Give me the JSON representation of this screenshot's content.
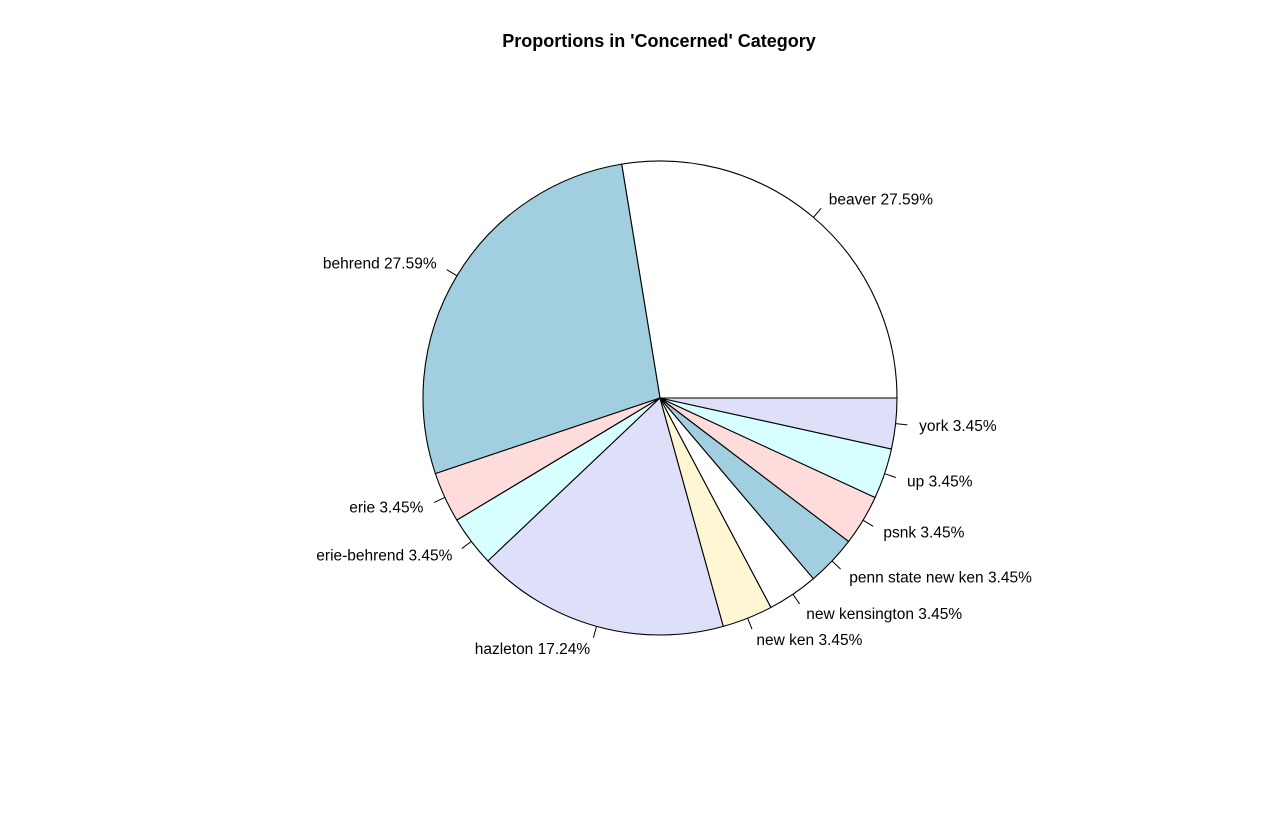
{
  "chart_data": {
    "type": "pie",
    "title": "Proportions in 'Concerned' Category",
    "start_angle_deg": 0,
    "direction": "counterclockwise",
    "slices": [
      {
        "label": "beaver",
        "percent": 27.59,
        "display": "beaver 27.59%",
        "color": "#ffffff"
      },
      {
        "label": "behrend",
        "percent": 27.59,
        "display": "behrend 27.59%",
        "color": "#a1cfe0"
      },
      {
        "label": "erie",
        "percent": 3.45,
        "display": "erie 3.45%",
        "color": "#ffdcdc"
      },
      {
        "label": "erie-behrend",
        "percent": 3.45,
        "display": "erie-behrend 3.45%",
        "color": "#d8ffff"
      },
      {
        "label": "hazleton",
        "percent": 17.24,
        "display": "hazleton 17.24%",
        "color": "#dedff9"
      },
      {
        "label": "new ken",
        "percent": 3.45,
        "display": "new ken 3.45%",
        "color": "#fff7d3"
      },
      {
        "label": "new kensington",
        "percent": 3.45,
        "display": "new kensington 3.45%",
        "color": "#ffffff"
      },
      {
        "label": "penn state new ken",
        "percent": 3.45,
        "display": "penn state new ken 3.45%",
        "color": "#a1cfe0"
      },
      {
        "label": "psnk",
        "percent": 3.45,
        "display": "psnk 3.45%",
        "color": "#ffdcdc"
      },
      {
        "label": "up",
        "percent": 3.45,
        "display": "up 3.45%",
        "color": "#d8ffff"
      },
      {
        "label": "york",
        "percent": 3.45,
        "display": "york 3.45%",
        "color": "#dedff9"
      }
    ]
  }
}
